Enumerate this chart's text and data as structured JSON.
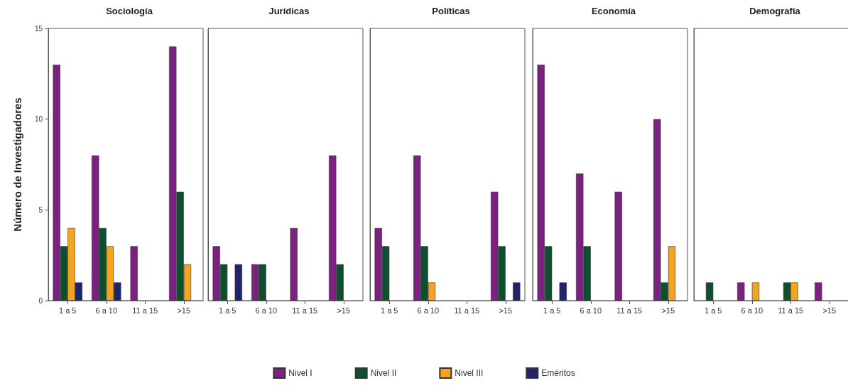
{
  "chart_data": [
    {
      "type": "bar",
      "title": "Sociología",
      "ylabel": "Número de Investigadores",
      "categories": [
        "1 a 5",
        "6 a 10",
        "11 a 15",
        ">15"
      ],
      "ylim": [
        0,
        15
      ],
      "yticks": [
        0,
        5,
        10,
        15
      ],
      "legend": "bottom",
      "series": [
        {
          "name": "Nivel I",
          "color": "#7b2180",
          "values": [
            13,
            8,
            3,
            14
          ]
        },
        {
          "name": "Nivel II",
          "color": "#0e4f30",
          "values": [
            3,
            4,
            null,
            6
          ]
        },
        {
          "name": "Nivel III",
          "color": "#f4a41e",
          "values": [
            4,
            3,
            null,
            2
          ]
        },
        {
          "name": "Eméritos",
          "color": "#22246a",
          "values": [
            1,
            1,
            null,
            null
          ]
        }
      ]
    },
    {
      "type": "bar",
      "title": "Jurídicas",
      "categories": [
        "1 a 5",
        "6 a 10",
        "11 a 15",
        ">15"
      ],
      "ylim": [
        0,
        15
      ],
      "tick_labels": "x",
      "series": [
        {
          "color": "#7b2180",
          "values": [
            3,
            2,
            4,
            8
          ]
        },
        {
          "color": "#0e4f30",
          "values": [
            2,
            2,
            null,
            2
          ]
        },
        {
          "color": "#f4a41e",
          "values": [
            null,
            null,
            null,
            null
          ]
        },
        {
          "color": "#22246a",
          "values": [
            2,
            null,
            null,
            null
          ]
        }
      ]
    },
    {
      "type": "bar",
      "title": "Políticas",
      "categories": [
        "1 a 5",
        "6 a 10",
        "11 a 15",
        ">15"
      ],
      "ylim": [
        0,
        15
      ],
      "tick_labels": "x",
      "series": [
        {
          "color": "#7b2180",
          "values": [
            4,
            8,
            null,
            6
          ]
        },
        {
          "color": "#0e4f30",
          "values": [
            3,
            3,
            null,
            3
          ]
        },
        {
          "color": "#f4a41e",
          "values": [
            null,
            1,
            null,
            null
          ]
        },
        {
          "color": "#22246a",
          "values": [
            null,
            null,
            null,
            1
          ]
        }
      ]
    },
    {
      "type": "bar",
      "title": "Economía",
      "categories": [
        "1 a 5",
        "6 a 10",
        "11 a 15",
        ">15"
      ],
      "ylim": [
        0,
        15
      ],
      "tick_labels": "x",
      "series": [
        {
          "color": "#7b2180",
          "values": [
            13,
            7,
            6,
            10
          ]
        },
        {
          "color": "#0e4f30",
          "values": [
            3,
            3,
            null,
            1
          ]
        },
        {
          "color": "#f4a41e",
          "values": [
            null,
            null,
            null,
            3
          ]
        },
        {
          "color": "#22246a",
          "values": [
            1,
            null,
            null,
            null
          ]
        }
      ]
    },
    {
      "type": "bar",
      "title": "Demografía",
      "categories": [
        "1 a 5",
        "6 a 10",
        "11 a 15",
        ">15"
      ],
      "ylim": [
        0,
        15
      ],
      "tick_labels": "x",
      "series": [
        {
          "color": "#7b2180",
          "values": [
            null,
            1,
            null,
            1
          ]
        },
        {
          "color": "#0e4f30",
          "values": [
            1,
            null,
            1,
            null
          ]
        },
        {
          "color": "#f4a41e",
          "values": [
            null,
            1,
            1,
            null
          ]
        },
        {
          "color": "#22246a",
          "values": [
            null,
            null,
            null,
            null
          ]
        }
      ]
    }
  ]
}
